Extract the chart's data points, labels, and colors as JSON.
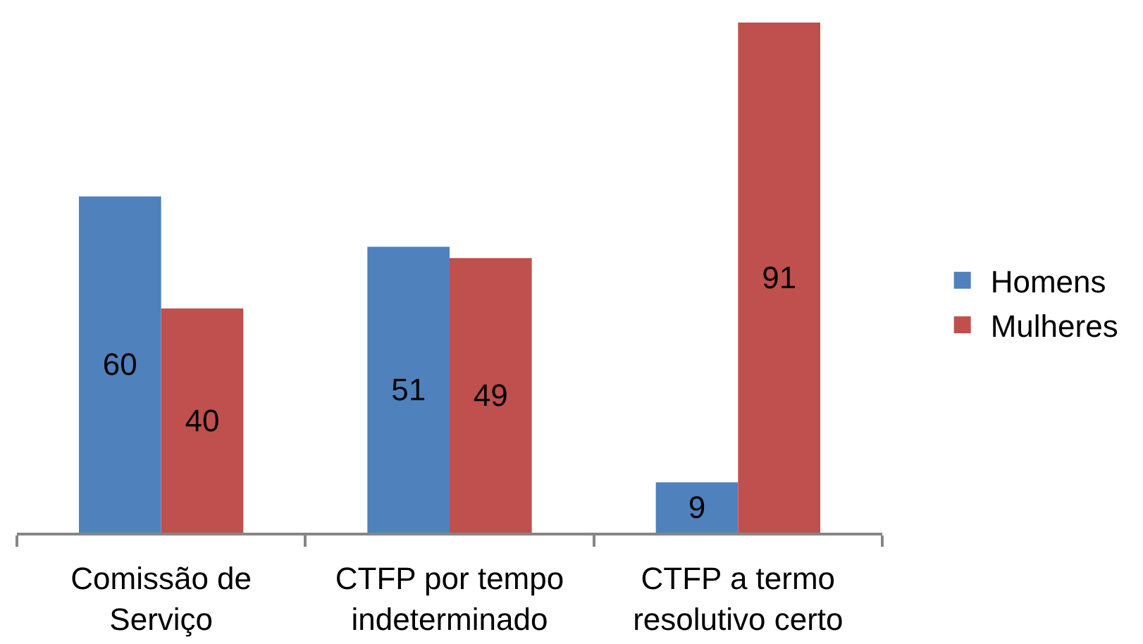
{
  "chart_data": {
    "type": "bar",
    "categories": [
      "Comissão de Serviço",
      "CTFP por tempo indeterminado",
      "CTFP a termo resolutivo certo"
    ],
    "series": [
      {
        "name": "Homens",
        "color": "#4f81bd",
        "values": [
          60,
          51,
          9
        ]
      },
      {
        "name": "Mulheres",
        "color": "#c0504d",
        "values": [
          40,
          49,
          91
        ]
      }
    ],
    "data_labels": true,
    "legend": "right",
    "tick_labels": "x"
  }
}
